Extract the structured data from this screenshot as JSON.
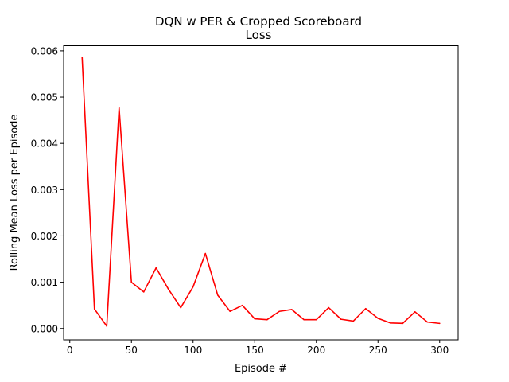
{
  "chart_data": {
    "type": "line",
    "title_line1": "DQN w PER & Cropped Scoreboard",
    "title_line2": "Loss",
    "xlabel": "Episode #",
    "ylabel": "Rolling Mean Loss per Episode",
    "xlim": [
      -5,
      315
    ],
    "ylim": [
      -0.000245,
      0.00611
    ],
    "x_ticks": [
      0,
      50,
      100,
      150,
      200,
      250,
      300
    ],
    "x_tick_labels": [
      "0",
      "50",
      "100",
      "150",
      "200",
      "250",
      "300"
    ],
    "y_ticks": [
      0,
      0.001,
      0.002,
      0.003,
      0.004,
      0.005,
      0.006
    ],
    "y_tick_labels": [
      "0.000",
      "0.001",
      "0.002",
      "0.003",
      "0.004",
      "0.005",
      "0.006"
    ],
    "grid": false,
    "series": [
      {
        "color": "#ff0000",
        "x": [
          10,
          20,
          30,
          40,
          50,
          60,
          70,
          80,
          90,
          100,
          110,
          120,
          130,
          140,
          150,
          160,
          170,
          180,
          190,
          200,
          210,
          220,
          230,
          240,
          250,
          260,
          270,
          280,
          290,
          300
        ],
        "values": [
          0.00586,
          0.00042,
          5e-05,
          0.00477,
          0.001,
          0.00079,
          0.00131,
          0.00085,
          0.00045,
          0.0009,
          0.00162,
          0.00072,
          0.00037,
          0.0005,
          0.00021,
          0.00019,
          0.00037,
          0.00041,
          0.00019,
          0.00019,
          0.00045,
          0.0002,
          0.00016,
          0.00043,
          0.00022,
          0.00012,
          0.00011,
          0.00036,
          0.00014,
          0.00011
        ]
      }
    ]
  }
}
